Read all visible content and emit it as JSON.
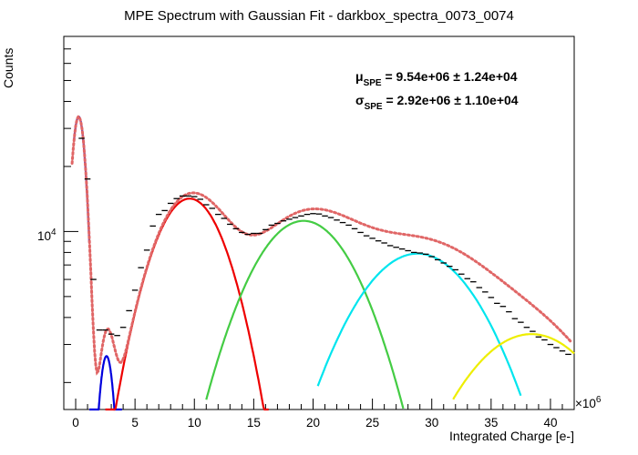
{
  "chart_data": {
    "type": "line",
    "title": "MPE Spectrum with Gaussian Fit - darkbox_spectra_0073_0074",
    "xlabel": "Integrated Charge [e-]",
    "ylabel": "Counts",
    "x_multiplier": "×10",
    "x_multiplier_exp": "6",
    "xlim": [
      -1,
      42
    ],
    "ylim": [
      1500,
      80000
    ],
    "yscale": "log",
    "x_ticks": [
      0,
      5,
      10,
      15,
      20,
      25,
      30,
      35,
      40
    ],
    "y_tick_label": {
      "value": 10000,
      "base": "10",
      "exp": "4"
    },
    "annotations": {
      "mu": {
        "symbol": "μ",
        "sub": "SPE",
        "text": " = 9.54e+06 ± 1.24e+04"
      },
      "sigma": {
        "symbol": "σ",
        "sub": "SPE",
        "text": " = 2.92e+06 ± 1.10e+04"
      }
    },
    "colors": {
      "data": "#000000",
      "total_fit": "#e06666",
      "pedestal": "#0000dd",
      "pe1": "#ee0000",
      "pe2": "#44cc44",
      "pe3": "#00e5ee",
      "pe4": "#eeee00"
    },
    "data_points": {
      "x": [
        0.5,
        1.0,
        1.5,
        2.0,
        2.5,
        3.0,
        3.5,
        4.0,
        4.5,
        5.0,
        5.5,
        6.0,
        6.5,
        7.0,
        7.5,
        8.0,
        8.5,
        9.0,
        9.5,
        10.0,
        10.5,
        11.0,
        11.5,
        12.0,
        12.5,
        13.0,
        13.5,
        14.0,
        14.5,
        15.0,
        15.5,
        16.0,
        16.5,
        17.0,
        17.5,
        18.0,
        18.5,
        19.0,
        19.5,
        20.0,
        20.5,
        21.0,
        21.5,
        22.0,
        22.5,
        23.0,
        23.5,
        24.0,
        24.5,
        25.0,
        25.5,
        26.0,
        26.5,
        27.0,
        27.5,
        28.0,
        28.5,
        29.0,
        29.5,
        30.0,
        30.5,
        31.0,
        31.5,
        32.0,
        32.5,
        33.0,
        33.5,
        34.0,
        34.5,
        35.0,
        35.5,
        36.0,
        36.5,
        37.0,
        37.5,
        38.0,
        38.5,
        39.0,
        39.5,
        40.0,
        40.5,
        41.0,
        41.5
      ],
      "y": [
        27000,
        17500,
        6000,
        3500,
        3500,
        3350,
        3300,
        3600,
        4300,
        5350,
        6800,
        8200,
        10600,
        12000,
        12500,
        13500,
        14200,
        14600,
        14600,
        14500,
        14100,
        13300,
        12800,
        12000,
        11500,
        10800,
        10300,
        9900,
        9700,
        9800,
        9800,
        10200,
        10700,
        10900,
        11200,
        11400,
        11600,
        11800,
        12000,
        12100,
        12050,
        11800,
        11600,
        11300,
        11000,
        10700,
        10300,
        9900,
        9550,
        9300,
        9050,
        8850,
        8600,
        8450,
        8300,
        8150,
        8000,
        7950,
        7850,
        7650,
        7400,
        7150,
        6900,
        6650,
        6350,
        6050,
        5850,
        5500,
        5250,
        4950,
        4650,
        4500,
        4250,
        3950,
        3800,
        3600,
        3450,
        3250,
        3150,
        3000,
        2900,
        2800,
        2700
      ]
    },
    "series": [
      {
        "role": "pedestal",
        "amp": 34000,
        "mean": 0.25,
        "sigma": 0.55,
        "x_range": [
          -0.15,
          1.15
        ]
      },
      {
        "role": "pedestal_tail",
        "amp": 2650,
        "mean": 2.6,
        "sigma": 0.62,
        "x_range": [
          1.15,
          3.9
        ]
      },
      {
        "role": "pe1",
        "amp": 14200,
        "mean": 9.6,
        "sigma": 2.95,
        "x_range": [
          2.5,
          16.25
        ]
      },
      {
        "role": "pe2",
        "amp": 11200,
        "mean": 19.2,
        "sigma": 4.2,
        "x_range": [
          11.0,
          27.6
        ]
      },
      {
        "role": "pe3",
        "amp": 7900,
        "mean": 28.8,
        "sigma": 5.0,
        "x_range": [
          20.4,
          37.5
        ]
      },
      {
        "role": "pe4",
        "amp": 3350,
        "mean": 38.4,
        "sigma": 5.6,
        "x_range": [
          31.8,
          42.0
        ]
      }
    ]
  }
}
